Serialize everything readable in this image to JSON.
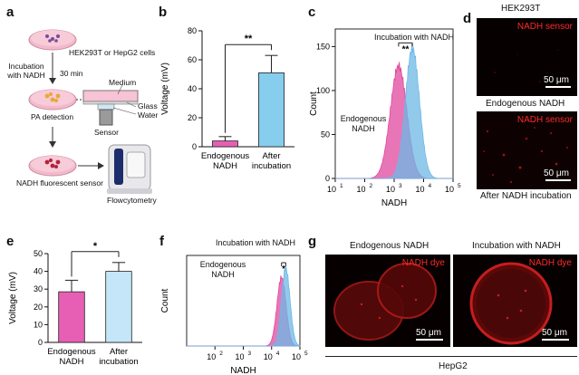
{
  "panels": {
    "a": {
      "letter": "a",
      "cells_label": "HEK293T or HepG2 cells",
      "incubation_label_1": "Incubation",
      "incubation_label_2": "with NADH",
      "time_label": "30 min",
      "medium_label": "Medium",
      "glass_label": "Glass",
      "water_label": "Water",
      "sensor_label": "Sensor",
      "pa_label": "PA detection",
      "nadh_sensor_label": "NADH fluorescent sensor",
      "flow_label": "Flowcytometry"
    },
    "b": {
      "letter": "b",
      "sig": "**"
    },
    "c": {
      "letter": "c",
      "incubation_label": "Incubation with NADH",
      "sig": "**",
      "endo_label_1": "Endogenous",
      "endo_label_2": "NADH"
    },
    "d": {
      "letter": "d",
      "cell_line": "HEK293T",
      "sensor_label_1": "NADH sensor",
      "sensor_label_2": "NADH sensor",
      "caption_1": "Endogenous NADH",
      "caption_2": "After NADH incubation",
      "scale_1": "50 μm",
      "scale_2": "50 μm"
    },
    "e": {
      "letter": "e",
      "sig": "*"
    },
    "f": {
      "letter": "f",
      "incubation_label": "Incubation with NADH",
      "sig": "*",
      "endo_label_1": "Endogenous",
      "endo_label_2": "NADH"
    },
    "g": {
      "letter": "g",
      "title_1": "Endogenous NADH",
      "title_2": "Incubation with NADH",
      "dye_1": "NADH dye",
      "dye_2": "NADH dye",
      "scale_1": "50 μm",
      "scale_2": "50 μm",
      "cell_line": "HepG2"
    }
  },
  "chart_data": [
    {
      "id": "b",
      "type": "bar",
      "categories": [
        "Endogenous\nNADH",
        "After\nincubation"
      ],
      "values": [
        4,
        51
      ],
      "errors": [
        3,
        12
      ],
      "colors": [
        "#e65fb4",
        "#86cdee"
      ],
      "ylabel": "Voltage (mV)",
      "ylim": [
        0,
        80
      ],
      "yticks": [
        0,
        20,
        40,
        60,
        80
      ],
      "significance": "**"
    },
    {
      "id": "c",
      "type": "area",
      "xlabel": "NADH",
      "ylabel": "Count",
      "xscale": "log",
      "xlim": [
        10,
        100000
      ],
      "xticks": [
        "10^1",
        "10^2",
        "10^3",
        "10^4",
        "10^5"
      ],
      "ylim": [
        0,
        170
      ],
      "yticks": [
        0,
        50,
        100,
        150
      ],
      "series": [
        {
          "name": "Endogenous NADH",
          "color": "#e0489f",
          "peak_log_x": 3.15,
          "peak": 128,
          "width": 0.28
        },
        {
          "name": "Incubation with NADH",
          "color": "#6db8e6",
          "peak_log_x": 3.62,
          "peak": 148,
          "width": 0.24
        }
      ]
    },
    {
      "id": "e",
      "type": "bar",
      "categories": [
        "Endogenous\nNADH",
        "After\nincubation"
      ],
      "values": [
        28.5,
        40
      ],
      "errors": [
        6.5,
        5
      ],
      "colors": [
        "#e65fb4",
        "#c4e6f8"
      ],
      "ylabel": "Voltage (mV)",
      "ylim": [
        0,
        50
      ],
      "yticks": [
        0,
        10,
        20,
        30,
        40,
        50
      ],
      "significance": "*"
    },
    {
      "id": "f",
      "type": "area",
      "xlabel": "NADH",
      "ylabel": "Count",
      "xscale": "log",
      "xlim": [
        10,
        100000
      ],
      "xticks": [
        "10^2",
        "10^3",
        "10^4",
        "10^5"
      ],
      "ylim": [
        0,
        100
      ],
      "series": [
        {
          "name": "Endogenous NADH",
          "color": "#e0489f",
          "peak_log_x": 4.35,
          "peak": 76,
          "width": 0.16
        },
        {
          "name": "Incubation with NADH",
          "color": "#6db8e6",
          "peak_log_x": 4.5,
          "peak": 86,
          "width": 0.15
        }
      ]
    }
  ]
}
